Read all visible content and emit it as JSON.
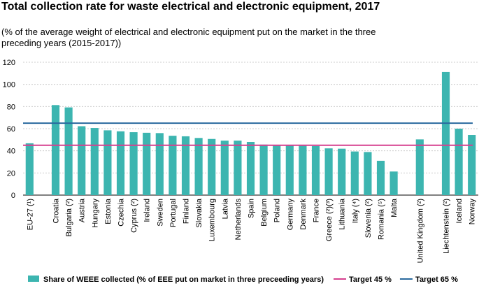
{
  "chart_data": {
    "type": "bar",
    "title": "Total collection rate for waste electrical and electronic equipment, 2017",
    "subtitle": "(% of the average weight of electrical and electronic equipment  put on the market in the three preceding  years (2015-2017))",
    "categories": [
      "EU-27 (¹)",
      null,
      "Croatia",
      "Bulgaria (²)",
      "Austria",
      "Hungary",
      "Estonia",
      "Czechia",
      "Cyprus (²)",
      "Ireland",
      "Sweden",
      "Portugal",
      "Finland",
      "Slovakia",
      "Luxembourg",
      "Latvia",
      "Netherlands",
      "Spain",
      "Belgium",
      "Poland",
      "Germany",
      "Denmark",
      "France",
      "Greece (²)(³)",
      "Lithuania",
      "Italy (⁴)",
      "Slovenia (²)",
      "Romania (⁵)",
      "Malta",
      null,
      "United Kingdom (²)",
      null,
      "Liechtenstein (²)",
      "Iceland",
      "Norway"
    ],
    "series": [
      {
        "name": "Share of WEEE collected (% of EEE put on market in three preceeding years)",
        "color": "#3cb5b0",
        "values": [
          46.8,
          null,
          81.3,
          79.2,
          62.2,
          60.6,
          58.5,
          57.6,
          56.8,
          56.3,
          56.0,
          53.6,
          53.1,
          51.6,
          50.7,
          49.2,
          49.2,
          48.0,
          45.6,
          44.9,
          44.9,
          44.5,
          44.3,
          42.2,
          41.9,
          39.4,
          38.9,
          31.0,
          21.3,
          null,
          50.3,
          null,
          111.2,
          60.0,
          54.3
        ]
      }
    ],
    "targets": [
      {
        "name": "Target 45 %",
        "value": 45,
        "color": "#d6408f"
      },
      {
        "name": "Target 65 %",
        "value": 65,
        "color": "#2a6a9e"
      }
    ],
    "ylim": [
      0,
      120
    ],
    "yticks": [
      0,
      20,
      40,
      60,
      80,
      100,
      120
    ],
    "grid": true
  }
}
